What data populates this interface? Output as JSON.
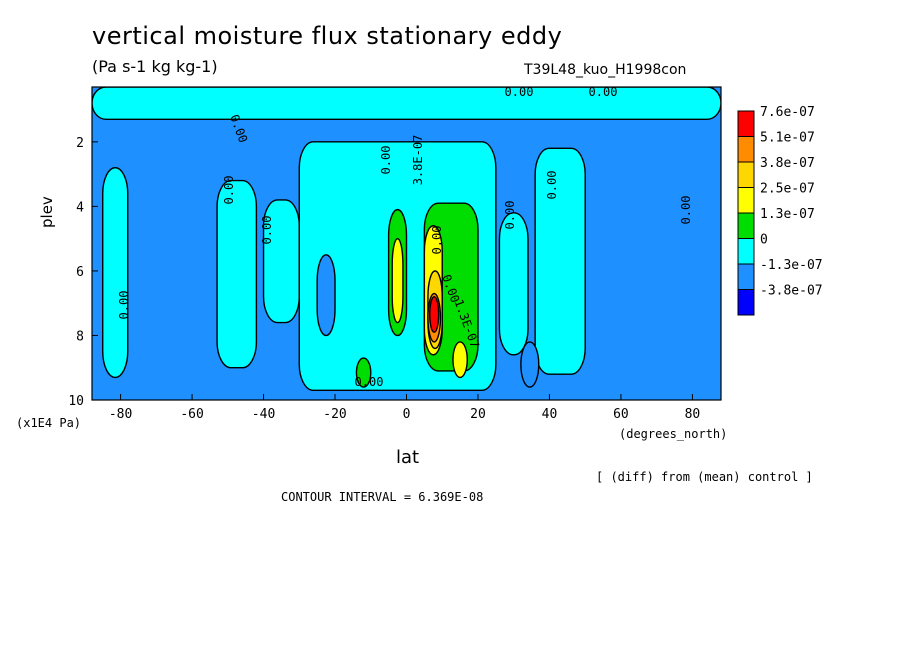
{
  "chart_data": {
    "type": "heatmap",
    "title": "vertical moisture flux stationary eddy",
    "subtitle": "(Pa s-1 kg kg-1)",
    "run_label": "T39L48_kuo_H1998con",
    "xlabel": "lat",
    "x_units": "(degrees_north)",
    "ylabel": "plev",
    "y_units": "(x1E4 Pa)",
    "xlim": [
      -88,
      88
    ],
    "ylim": [
      10,
      0.3
    ],
    "x_ticks": [
      -80,
      -60,
      -40,
      -20,
      0,
      20,
      40,
      60,
      80
    ],
    "x_tick_labels": [
      "-80",
      "-60",
      "-40",
      "-20",
      "0",
      "20",
      "40",
      "60",
      "80"
    ],
    "y_ticks": [
      2,
      4,
      6,
      8,
      10
    ],
    "y_tick_labels": [
      "2",
      "4",
      "6",
      "8",
      "10"
    ],
    "legend": {
      "placement": "right",
      "levels": [
        "7.6e-07",
        "5.1e-07",
        "3.8e-07",
        "2.5e-07",
        "1.3e-07",
        "0",
        "-1.3e-07",
        "-3.8e-07"
      ],
      "colors": [
        "#ff0000",
        "#ff8c00",
        "#ffd700",
        "#ffff00",
        "#00dd00",
        "#00ffff",
        "#1e90ff",
        "#0000ff"
      ]
    },
    "contour_labels": [
      "0.00",
      "0.00",
      "0.00",
      "0.00",
      "0.00",
      "0.00",
      "0.00",
      "0.00",
      "0.00",
      "0.00",
      "0.00",
      "0.00",
      "0.00",
      "1.3E-07",
      "3.8E-07"
    ],
    "note": "[ (diff) from (mean) control ]",
    "contour_interval": "CONTOUR INTERVAL = 6.369E-08",
    "fields": {
      "background": "#1e90ff",
      "regions": [
        {
          "level": "0",
          "lat": [
            -88,
            88
          ],
          "plev": [
            0.3,
            1.3
          ]
        },
        {
          "level": "0",
          "lat": [
            -85,
            -78
          ],
          "plev": [
            2.8,
            9.3
          ]
        },
        {
          "level": "0",
          "lat": [
            -53,
            -42
          ],
          "plev": [
            3.2,
            9.0
          ]
        },
        {
          "level": "0",
          "lat": [
            -40,
            -30
          ],
          "plev": [
            3.8,
            7.6
          ]
        },
        {
          "level": "0",
          "lat": [
            -30,
            25
          ],
          "plev": [
            2.0,
            9.7
          ]
        },
        {
          "level": "0",
          "lat": [
            26,
            34
          ],
          "plev": [
            4.2,
            8.6
          ]
        },
        {
          "level": "0",
          "lat": [
            36,
            50
          ],
          "plev": [
            2.2,
            9.2
          ]
        },
        {
          "level": "-1.3e-07",
          "lat": [
            -25,
            -20
          ],
          "plev": [
            5.5,
            8.0
          ]
        },
        {
          "level": "-1.3e-07",
          "lat": [
            32,
            37
          ],
          "plev": [
            8.2,
            9.6
          ]
        },
        {
          "level": "1.3e-07",
          "lat": [
            -5,
            0
          ],
          "plev": [
            4.1,
            8.0
          ]
        },
        {
          "level": "1.3e-07",
          "lat": [
            5,
            20
          ],
          "plev": [
            3.9,
            9.1
          ]
        },
        {
          "level": "1.3e-07",
          "lat": [
            -14,
            -10
          ],
          "plev": [
            8.7,
            9.6
          ]
        },
        {
          "level": "2.5e-07",
          "lat": [
            -4,
            -1
          ],
          "plev": [
            5.0,
            7.6
          ]
        },
        {
          "level": "2.5e-07",
          "lat": [
            5,
            10
          ],
          "plev": [
            4.6,
            8.6
          ]
        },
        {
          "level": "2.5e-07",
          "lat": [
            13,
            17
          ],
          "plev": [
            8.2,
            9.3
          ]
        },
        {
          "level": "3.8e-07",
          "lat": [
            6,
            10
          ],
          "plev": [
            6.0,
            8.4
          ]
        },
        {
          "level": "5.1e-07",
          "lat": [
            6,
            9.5
          ],
          "plev": [
            6.7,
            8.2
          ]
        },
        {
          "level": "7.6e-07",
          "lat": [
            6.5,
            9
          ],
          "plev": [
            6.8,
            7.9
          ]
        }
      ]
    }
  }
}
